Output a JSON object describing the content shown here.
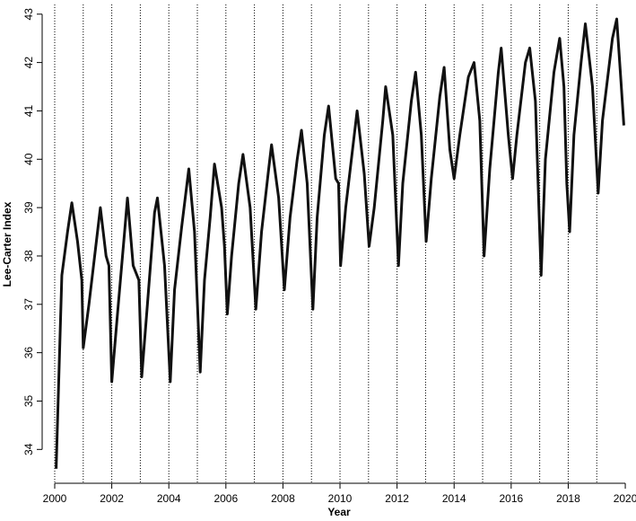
{
  "chart_data": {
    "type": "line",
    "x_label": "Year",
    "y_label": "Lee-Carter Index",
    "x": [
      2000.05,
      2000.25,
      2000.45,
      2000.6,
      2000.8,
      2000.95,
      2001.0,
      2001.2,
      2001.5,
      2001.6,
      2001.8,
      2001.9,
      2002.0,
      2002.2,
      2002.45,
      2002.55,
      2002.75,
      2002.95,
      2003.05,
      2003.25,
      2003.5,
      2003.6,
      2003.85,
      2004.05,
      2004.2,
      2004.45,
      2004.7,
      2004.9,
      2005.1,
      2005.25,
      2005.45,
      2005.6,
      2005.85,
      2005.95,
      2006.05,
      2006.2,
      2006.45,
      2006.6,
      2006.85,
      2007.05,
      2007.25,
      2007.5,
      2007.6,
      2007.85,
      2008.05,
      2008.25,
      2008.5,
      2008.65,
      2008.85,
      2009.05,
      2009.2,
      2009.45,
      2009.6,
      2009.85,
      2009.95,
      2010.02,
      2010.2,
      2010.5,
      2010.6,
      2010.85,
      2011.02,
      2011.2,
      2011.5,
      2011.6,
      2011.85,
      2012.05,
      2012.2,
      2012.5,
      2012.65,
      2012.85,
      2013.02,
      2013.2,
      2013.5,
      2013.65,
      2013.85,
      2014.0,
      2014.2,
      2014.5,
      2014.7,
      2014.9,
      2015.05,
      2015.25,
      2015.55,
      2015.65,
      2015.9,
      2016.05,
      2016.2,
      2016.5,
      2016.65,
      2016.85,
      2017.05,
      2017.2,
      2017.5,
      2017.7,
      2017.85,
      2017.95,
      2018.05,
      2018.2,
      2018.45,
      2018.6,
      2018.85,
      2019.05,
      2019.2,
      2019.55,
      2019.7,
      2019.85,
      2019.95
    ],
    "series": [
      {
        "name": "Lee-Carter Index",
        "color": "#111111",
        "values": [
          33.6,
          37.6,
          38.5,
          39.1,
          38.3,
          37.5,
          36.1,
          37.0,
          38.5,
          39.0,
          38.0,
          37.8,
          35.4,
          36.8,
          38.5,
          39.2,
          37.8,
          37.5,
          35.5,
          37.0,
          38.9,
          39.2,
          37.8,
          35.4,
          37.3,
          38.6,
          39.8,
          38.5,
          35.6,
          37.5,
          38.8,
          39.9,
          39.0,
          38.2,
          36.8,
          38.0,
          39.5,
          40.1,
          39.0,
          36.9,
          38.5,
          39.8,
          40.3,
          39.2,
          37.3,
          38.8,
          40.0,
          40.6,
          39.5,
          36.9,
          38.8,
          40.5,
          41.1,
          39.6,
          39.5,
          37.8,
          39.0,
          40.5,
          41.0,
          39.7,
          38.2,
          39.0,
          40.8,
          41.5,
          40.5,
          37.8,
          39.5,
          41.2,
          41.8,
          40.5,
          38.3,
          39.6,
          41.3,
          41.9,
          40.2,
          39.6,
          40.5,
          41.7,
          42.0,
          40.8,
          38.0,
          39.8,
          41.8,
          42.3,
          40.5,
          39.6,
          40.5,
          42.0,
          42.3,
          41.2,
          37.6,
          40.0,
          41.8,
          42.5,
          41.5,
          39.5,
          38.5,
          40.5,
          42.0,
          42.8,
          41.5,
          39.3,
          40.8,
          42.5,
          42.9,
          41.6,
          40.7
        ]
      }
    ],
    "xlim": [
      1999.56,
      2020.25
    ],
    "ylim": [
      33.3,
      43.2
    ],
    "xticks": [
      2000,
      2002,
      2004,
      2006,
      2008,
      2010,
      2012,
      2014,
      2016,
      2018,
      2020
    ],
    "yticks": [
      34,
      35,
      36,
      37,
      38,
      39,
      40,
      41,
      42,
      43
    ],
    "vlines": [
      2000,
      2001,
      2002,
      2003,
      2004,
      2005,
      2006,
      2007,
      2008,
      2009,
      2010,
      2011,
      2012,
      2013,
      2014,
      2015,
      2016,
      2017,
      2018,
      2019
    ],
    "line_width": 3
  }
}
